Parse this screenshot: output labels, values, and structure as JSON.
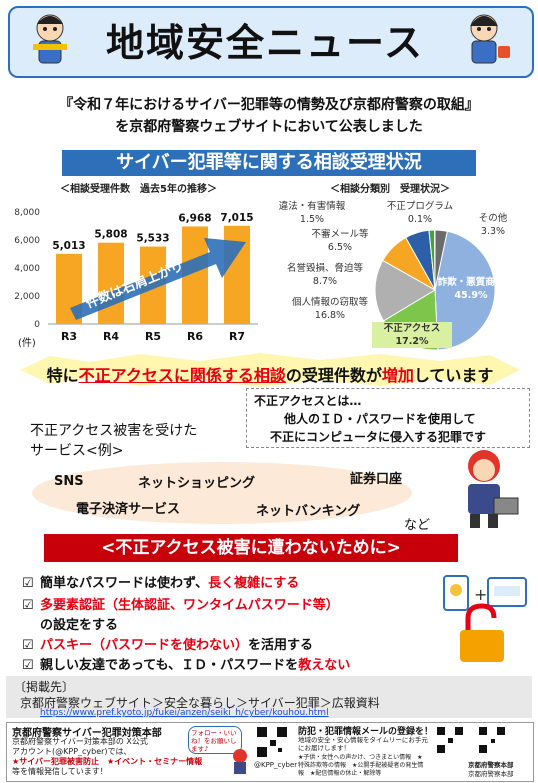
{
  "header": {
    "title": "地域安全ニュース"
  },
  "intro": {
    "line1": "『令和７年におけるサイバー犯罪等の情勢及び京都府警察の取組』",
    "line2": "を京都府警察ウェブサイトにおいて公表しました"
  },
  "section_title": "サイバー犯罪等に関する相談受理状況",
  "chart_data": [
    {
      "type": "bar",
      "title": "＜相談受理件数　過去5年の推移＞",
      "categories": [
        "R3",
        "R4",
        "R5",
        "R6",
        "R7"
      ],
      "values": [
        5013,
        5808,
        5533,
        6968,
        7015
      ],
      "value_labels": [
        "5,013",
        "5,808",
        "5,533",
        "6,968",
        "7,015"
      ],
      "ylim": [
        0,
        8000
      ],
      "yticks": [
        "0",
        "2,000",
        "4,000",
        "6,000",
        "8,000"
      ],
      "yunit": "(件)",
      "arrow_label": "件数は右肩上がり",
      "color": "#f6a623"
    },
    {
      "type": "pie",
      "title": "＜相談分類別　受理状況＞",
      "slices": [
        {
          "label": "詐欺・悪質商法",
          "value": 45.9,
          "text": "45.9%",
          "color": "#8fb1df"
        },
        {
          "label": "不正アクセス",
          "value": 17.2,
          "text": "17.2%",
          "color": "#7dc64b"
        },
        {
          "label": "個人情報の窃取等",
          "value": 16.8,
          "text": "16.8%",
          "color": "#b0b0b0"
        },
        {
          "label": "名誉毀損、脅迫等",
          "value": 8.7,
          "text": "8.7%",
          "color": "#f6a623"
        },
        {
          "label": "不審メール等",
          "value": 6.5,
          "text": "6.5%",
          "color": "#2d5ea8"
        },
        {
          "label": "違法・有害情報",
          "value": 1.5,
          "text": "1.5%",
          "color": "#4a9e3f"
        },
        {
          "label": "不正プログラム",
          "value": 0.1,
          "text": "0.1%",
          "color": "#e0c040"
        },
        {
          "label": "その他",
          "value": 3.3,
          "text": "3.3%",
          "color": "#6b6b6b"
        }
      ]
    }
  ],
  "highlight": {
    "pre": "特に",
    "emph": "不正アクセスに関係する相談",
    "mid": "の受理件数が",
    "emph2": "増加",
    "post": "しています"
  },
  "definition": {
    "line1": "不正アクセスとは…",
    "line2": "他人のＩＤ・パスワードを使用して",
    "line3": "不正にコンピュータに侵入する犯罪です"
  },
  "services": {
    "caption_line1": "不正アクセス被害を受けた",
    "caption_line2": "サービス<例>",
    "items": [
      "SNS",
      "ネットショッピング",
      "証券口座",
      "電子決済サービス",
      "ネットバンキング"
    ],
    "etc": "など"
  },
  "prevention_title": "<不正アクセス被害に遭わないために>",
  "tips": [
    {
      "check": "☑",
      "a": "簡単なパスワードは使わず、",
      "b": "長く複雑にする",
      "c": ""
    },
    {
      "check": "☑",
      "a": "",
      "b": "多要素認証（生体認証、ワンタイムパスワード等）",
      "c": ""
    },
    {
      "check": "",
      "a": "の設定をする",
      "b": "",
      "c": ""
    },
    {
      "check": "☑",
      "a": "",
      "b": "パスキー（パスワードを使わない）",
      "c": "を活用する"
    },
    {
      "check": "☑",
      "a": "親しい友達であっても、ＩＤ・パスワードを",
      "b": "教えない",
      "c": ""
    }
  ],
  "source": {
    "label": "〔掲載先〕",
    "path": "京都府警察ウェブサイト＞安全な暮らし＞サイバー犯罪＞広報資料",
    "url": "https://www.pref.kyoto.jp/fukei/anzen/seiki_h/cyber/kouhou.html"
  },
  "footer": {
    "org": "京都府警察サイバー犯罪対策本部",
    "line1": "京都府警察サイバー対策本部の X公式",
    "line2": "アカウント(@KPP_cyber)では、",
    "line3": "★サイバー犯罪被害防止　★イベント・セミナー情報",
    "line4": "等を情報発信しています！",
    "bubble": "フォロー・いいね！をお願いします♪",
    "handle": "@KPP_cyber",
    "mail_title": "防犯・犯罪情報メールの登録を！",
    "mail_sub": "地域の安全・安心情報をタイムリーにお手元にお届けします！",
    "mail_note": "★子供・女性への声かけ、つきまとい情報　★特殊詐欺等の情報　★公開手配被疑者の発生情報　★配信情報の休止・解除等",
    "hq1": "京都府警察本部",
    "hq2": "京都府警察本部"
  },
  "colors": {
    "blue": "#2d6fb8",
    "red": "#e60012",
    "orange": "#f6a623",
    "green_hl": "#d9f0a0"
  }
}
